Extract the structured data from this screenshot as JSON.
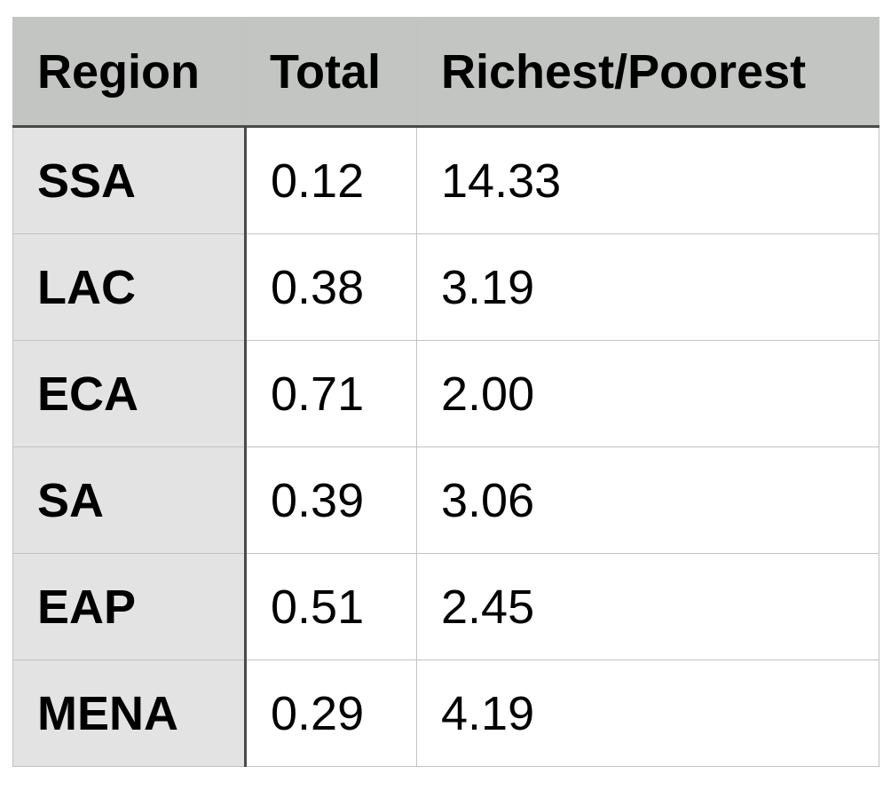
{
  "chart_data": {
    "type": "table",
    "columns": [
      "Region",
      "Total",
      "Richest/Poorest"
    ],
    "rows": [
      {
        "region": "SSA",
        "total": "0.12",
        "ratio": "14.33"
      },
      {
        "region": "LAC",
        "total": "0.38",
        "ratio": "3.19"
      },
      {
        "region": "ECA",
        "total": "0.71",
        "ratio": "2.00"
      },
      {
        "region": "SA",
        "total": "0.39",
        "ratio": "3.06"
      },
      {
        "region": "EAP",
        "total": "0.51",
        "ratio": "2.45"
      },
      {
        "region": "MENA",
        "total": "0.29",
        "ratio": "4.19"
      }
    ]
  },
  "colors": {
    "header_bg": "#c3c5c3",
    "row_header_bg": "#e3e3e3",
    "cell_bg": "#ffffff",
    "grid": "#c2c2c2",
    "divider": "#4a4a4a"
  }
}
